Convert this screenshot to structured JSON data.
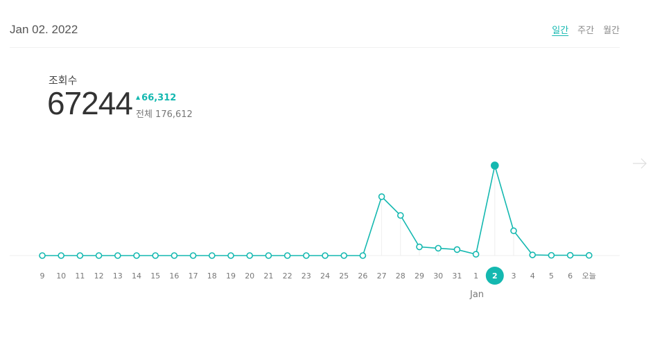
{
  "header": {
    "date": "Jan 02. 2022",
    "tabs": [
      {
        "label": "일간",
        "active": true
      },
      {
        "label": "주간",
        "active": false
      },
      {
        "label": "월간",
        "active": false
      }
    ]
  },
  "summary": {
    "label": "조회수",
    "value": "67244",
    "delta": "66,312",
    "total": "전체 176,612"
  },
  "colors": {
    "accent": "#14b8b0",
    "axis": "#eeeeee"
  },
  "icons": {
    "next": "arrow-right-icon",
    "delta": "triangle-up-icon"
  },
  "chart_data": {
    "type": "line",
    "categories": [
      "9",
      "10",
      "11",
      "12",
      "13",
      "14",
      "15",
      "16",
      "17",
      "18",
      "19",
      "20",
      "21",
      "22",
      "23",
      "24",
      "25",
      "26",
      "27",
      "28",
      "29",
      "30",
      "31",
      "1",
      "2",
      "3",
      "4",
      "5",
      "6",
      "오늘"
    ],
    "values": [
      0,
      0,
      0,
      0,
      0,
      0,
      0,
      0,
      0,
      0,
      0,
      0,
      0,
      0,
      0,
      0,
      0,
      0,
      44000,
      30000,
      6500,
      5500,
      4500,
      1000,
      67244,
      18500,
      500,
      200,
      250,
      150
    ],
    "selected_index": 24,
    "month_label": "Jan",
    "grid": false
  }
}
